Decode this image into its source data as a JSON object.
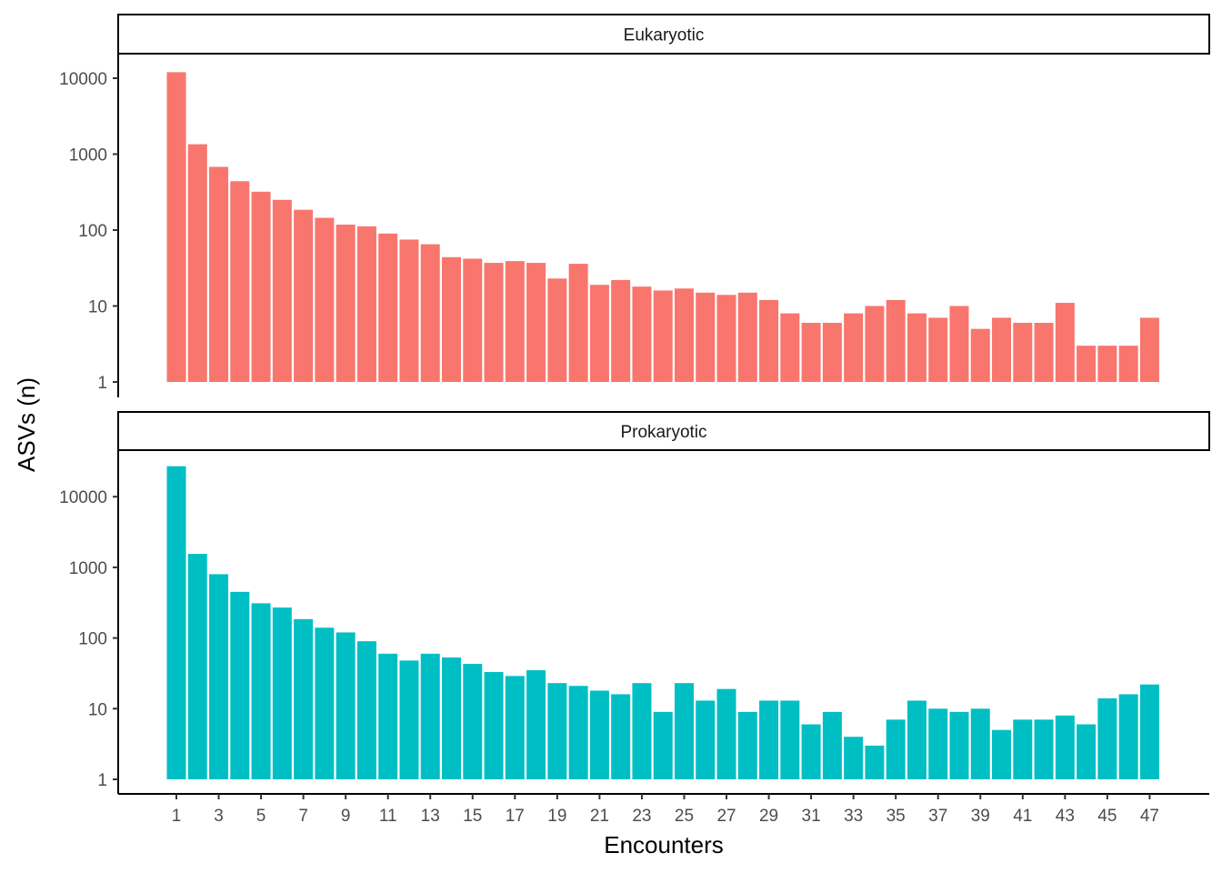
{
  "chart_data": {
    "type": "bar",
    "y_scale": "log10",
    "grid": false,
    "xlabel": "Encounters",
    "ylabel": "ASVs (n)",
    "x": [
      1,
      2,
      3,
      4,
      5,
      6,
      7,
      8,
      9,
      10,
      11,
      12,
      13,
      14,
      15,
      16,
      17,
      18,
      19,
      20,
      21,
      22,
      23,
      24,
      25,
      26,
      27,
      28,
      29,
      30,
      31,
      32,
      33,
      34,
      35,
      36,
      37,
      38,
      39,
      40,
      41,
      42,
      43,
      44,
      45,
      46,
      47
    ],
    "x_tick_labels": [
      "1",
      "3",
      "5",
      "7",
      "9",
      "11",
      "13",
      "15",
      "17",
      "19",
      "21",
      "23",
      "25",
      "27",
      "29",
      "31",
      "33",
      "35",
      "37",
      "39",
      "41",
      "43",
      "45",
      "47"
    ],
    "y_tick_labels": [
      "1",
      "10",
      "100",
      "1000",
      "10000"
    ],
    "series": [
      {
        "name": "Eukaryotic",
        "color": "#F8766D",
        "values": [
          12000,
          1350,
          680,
          440,
          320,
          250,
          185,
          145,
          118,
          112,
          90,
          75,
          65,
          44,
          42,
          37,
          39,
          37,
          23,
          36,
          19,
          22,
          18,
          16,
          17,
          15,
          14,
          15,
          12,
          8,
          6,
          6,
          8,
          10,
          12,
          8,
          7,
          10,
          5,
          7,
          6,
          6,
          11,
          3,
          3,
          3,
          7
        ]
      },
      {
        "name": "Prokaryotic",
        "color": "#00BFC4",
        "values": [
          27000,
          1550,
          800,
          450,
          310,
          270,
          185,
          140,
          120,
          90,
          60,
          48,
          60,
          53,
          43,
          33,
          29,
          35,
          23,
          21,
          18,
          16,
          23,
          9,
          23,
          13,
          19,
          9,
          13,
          13,
          6,
          9,
          4,
          3,
          7,
          13,
          10,
          9,
          10,
          5,
          7,
          7,
          8,
          6,
          14,
          16,
          22
        ]
      }
    ]
  }
}
